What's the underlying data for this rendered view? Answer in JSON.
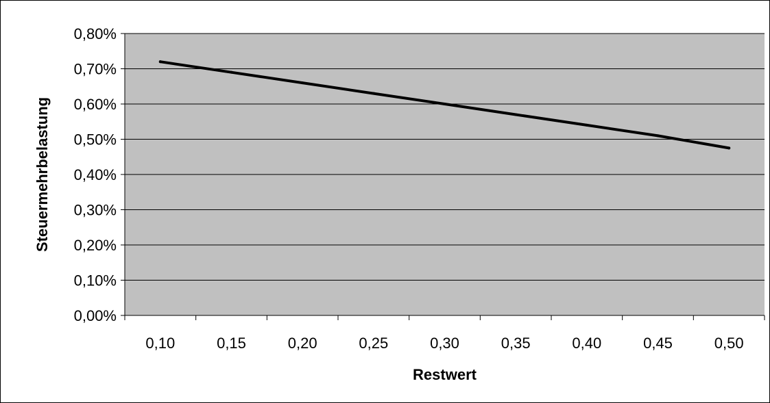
{
  "chart_data": {
    "type": "line",
    "title": "",
    "xlabel": "Restwert",
    "ylabel": "Steuermehrbelastung",
    "x_categories": [
      "0,10",
      "0,15",
      "0,20",
      "0,25",
      "0,30",
      "0,35",
      "0,40",
      "0,45",
      "0,50"
    ],
    "y_tick_labels": [
      "0,00%",
      "0,10%",
      "0,20%",
      "0,30%",
      "0,40%",
      "0,50%",
      "0,60%",
      "0,70%",
      "0,80%"
    ],
    "ylim": [
      0,
      0.8
    ],
    "y_unit": "%",
    "series": [
      {
        "values": [
          0.72,
          0.69,
          0.66,
          0.63,
          0.6,
          0.57,
          0.54,
          0.51,
          0.475
        ]
      }
    ],
    "grid": "horizontal",
    "legend": "none",
    "colors": {
      "plot_background": "#c0c0c0",
      "line": "#000000",
      "gridline": "#000000"
    }
  }
}
